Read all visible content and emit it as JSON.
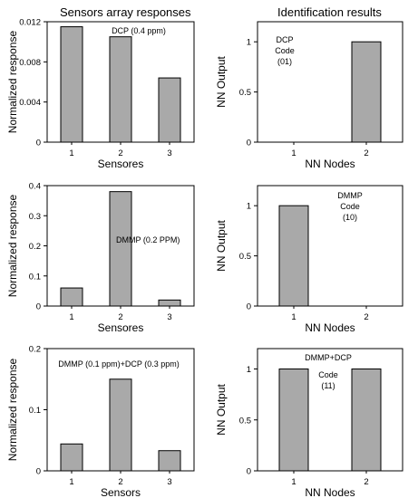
{
  "column_titles": {
    "left": "Sensors array responses",
    "right": "Identification results"
  },
  "chart_data": [
    {
      "type": "bar",
      "categories": [
        "1",
        "2",
        "3"
      ],
      "values": [
        0.0115,
        0.0105,
        0.0064
      ],
      "ylim": [
        0,
        0.012
      ],
      "yticks": [
        "0",
        "0.004",
        "0.008",
        "0.012"
      ],
      "ylabel": "Normalized response",
      "xlabel": "Sensores",
      "annotations": [
        "DCP (0.4 ppm)"
      ]
    },
    {
      "type": "bar",
      "categories": [
        "1",
        "2"
      ],
      "values": [
        0,
        1
      ],
      "ylim": [
        0,
        1.2
      ],
      "yticks": [
        "0",
        "0.5",
        "1"
      ],
      "ylabel": "NN Output",
      "xlabel": "NN Nodes",
      "annotations": [
        "DCP",
        "Code",
        "(01)"
      ]
    },
    {
      "type": "bar",
      "categories": [
        "1",
        "2",
        "3"
      ],
      "values": [
        0.06,
        0.38,
        0.02
      ],
      "ylim": [
        0,
        0.4
      ],
      "yticks": [
        "0",
        "0.1",
        "0.2",
        "0.3",
        "0.4"
      ],
      "ylabel": "Normalized response",
      "xlabel": "Sensores",
      "annotations": [
        "DMMP (0.2 PPM)"
      ]
    },
    {
      "type": "bar",
      "categories": [
        "1",
        "2"
      ],
      "values": [
        1,
        0
      ],
      "ylim": [
        0,
        1.2
      ],
      "yticks": [
        "0",
        "0.5",
        "1"
      ],
      "ylabel": "NN Output",
      "xlabel": "NN Nodes",
      "annotations": [
        "DMMP",
        "Code",
        "(10)"
      ]
    },
    {
      "type": "bar",
      "categories": [
        "1",
        "2",
        "3"
      ],
      "values": [
        0.044,
        0.15,
        0.033
      ],
      "ylim": [
        0,
        0.2
      ],
      "yticks": [
        "0",
        "0.1",
        "0.2"
      ],
      "ylabel": "Normalized response",
      "xlabel": "Sensors",
      "annotations": [
        "DMMP (0.1 ppm)+DCP (0.3 ppm)"
      ]
    },
    {
      "type": "bar",
      "categories": [
        "1",
        "2"
      ],
      "values": [
        1,
        1
      ],
      "ylim": [
        0,
        1.2
      ],
      "yticks": [
        "0",
        "0.5",
        "1"
      ],
      "ylabel": "NN Output",
      "xlabel": "NN Nodes",
      "annotations": [
        "DMMP+DCP",
        "Code",
        "(11)"
      ]
    }
  ]
}
